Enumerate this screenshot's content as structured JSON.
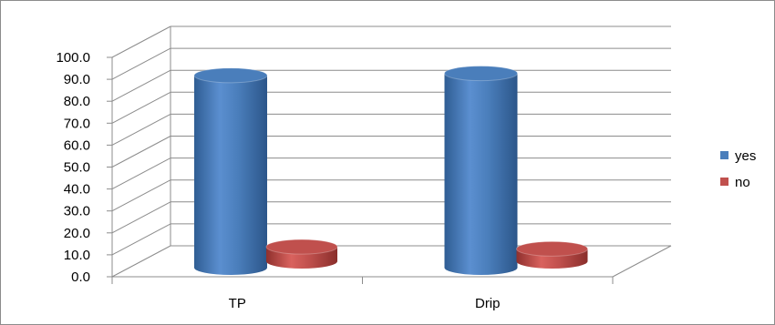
{
  "chart_data": {
    "type": "bar",
    "style": "3d-cylinder",
    "categories": [
      "TP",
      "Drip"
    ],
    "series": [
      {
        "name": "yes",
        "values": [
          93.0,
          94.0
        ],
        "color": "#4a7ebb"
      },
      {
        "name": "no",
        "values": [
          7.0,
          6.0
        ],
        "color": "#c0504d"
      }
    ],
    "ylim": [
      0,
      100
    ],
    "yticks": [
      "0.0",
      "10.0",
      "20.0",
      "30.0",
      "40.0",
      "50.0",
      "60.0",
      "70.0",
      "80.0",
      "90.0",
      "100.0"
    ],
    "grid": true,
    "legend": "right"
  }
}
